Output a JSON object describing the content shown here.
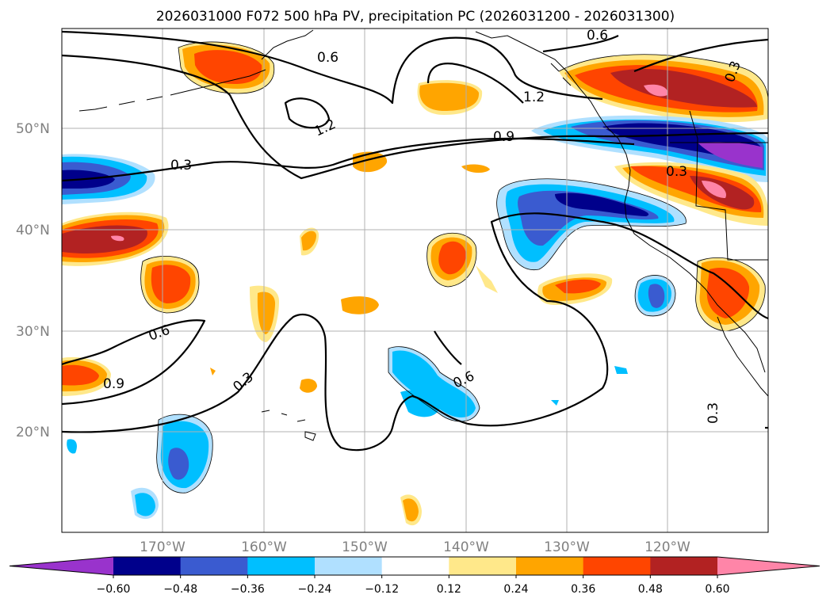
{
  "title": "2026031000 F072 500 hPa PV, precipitation PC (2026031200 - 2026031300)",
  "lat_labels": [
    "50°N",
    "40°N",
    "30°N",
    "20°N"
  ],
  "lon_labels": [
    "170°W",
    "160°W",
    "150°W",
    "140°W",
    "130°W",
    "120°W"
  ],
  "colorbar": {
    "ticks": [
      "−0.60",
      "−0.48",
      "−0.36",
      "−0.24",
      "−0.12",
      "0.12",
      "0.24",
      "0.36",
      "0.48",
      "0.60"
    ],
    "colors": [
      "#9933cc",
      "#00008b",
      "#3a5bd0",
      "#00bfff",
      "#b0e0ff",
      "#ffffff",
      "#ffe88a",
      "#ffa500",
      "#ff4500",
      "#b22222",
      "#ff85a8"
    ]
  },
  "contour_labels": [
    "0.6",
    "1.2",
    "1.2",
    "0.9",
    "0.3",
    "0.3",
    "0.6",
    "0.3",
    "0.9",
    "0.6",
    "0.3",
    "0.3"
  ],
  "chart_data": {
    "type": "map",
    "fields": [
      "500 hPa PV (contours)",
      "precipitation PC (shaded)"
    ],
    "lat_range": [
      10,
      60
    ],
    "lon_range": [
      -180,
      -110
    ],
    "pv_contour_levels": [
      0.3,
      0.6,
      0.9,
      1.2
    ],
    "shading_levels": [
      -0.6,
      -0.48,
      -0.36,
      -0.24,
      -0.12,
      0.12,
      0.24,
      0.36,
      0.48,
      0.6
    ]
  }
}
